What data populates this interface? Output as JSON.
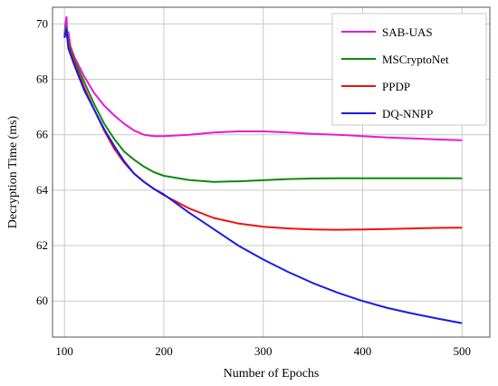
{
  "chart_data": {
    "type": "line",
    "title": "",
    "xlabel": "Number of Epochs",
    "ylabel": "Decryption Time (ms)",
    "xlim": [
      88,
      528
    ],
    "ylim": [
      58.7,
      70.6
    ],
    "xticks": [
      100,
      200,
      300,
      400,
      500
    ],
    "yticks": [
      60,
      62,
      64,
      66,
      68,
      70
    ],
    "grid": true,
    "legend_position": "top-right",
    "series": [
      {
        "name": "SAB-UAS",
        "color": "#e619d9",
        "points": [
          [
            100,
            69.6
          ],
          [
            101,
            70.0
          ],
          [
            102,
            70.25
          ],
          [
            103,
            69.5
          ],
          [
            104,
            69.7
          ],
          [
            106,
            69.2
          ],
          [
            110,
            68.8
          ],
          [
            120,
            68.1
          ],
          [
            130,
            67.5
          ],
          [
            140,
            67.05
          ],
          [
            150,
            66.7
          ],
          [
            160,
            66.4
          ],
          [
            170,
            66.15
          ],
          [
            180,
            66.0
          ],
          [
            190,
            65.95
          ],
          [
            200,
            65.95
          ],
          [
            225,
            66.0
          ],
          [
            250,
            66.08
          ],
          [
            275,
            66.12
          ],
          [
            300,
            66.12
          ],
          [
            325,
            66.08
          ],
          [
            350,
            66.03
          ],
          [
            375,
            66.0
          ],
          [
            400,
            65.95
          ],
          [
            425,
            65.9
          ],
          [
            450,
            65.87
          ],
          [
            475,
            65.83
          ],
          [
            500,
            65.8
          ]
        ]
      },
      {
        "name": "MSCryptoNet",
        "color": "#0d8a0d",
        "points": [
          [
            100,
            69.5
          ],
          [
            102,
            69.9
          ],
          [
            104,
            69.3
          ],
          [
            110,
            68.7
          ],
          [
            120,
            67.9
          ],
          [
            130,
            67.1
          ],
          [
            140,
            66.4
          ],
          [
            150,
            65.85
          ],
          [
            160,
            65.4
          ],
          [
            170,
            65.1
          ],
          [
            180,
            64.85
          ],
          [
            190,
            64.65
          ],
          [
            200,
            64.52
          ],
          [
            225,
            64.37
          ],
          [
            250,
            64.3
          ],
          [
            275,
            64.32
          ],
          [
            300,
            64.36
          ],
          [
            325,
            64.4
          ],
          [
            350,
            64.42
          ],
          [
            375,
            64.43
          ],
          [
            400,
            64.43
          ],
          [
            425,
            64.43
          ],
          [
            450,
            64.43
          ],
          [
            475,
            64.43
          ],
          [
            500,
            64.43
          ]
        ]
      },
      {
        "name": "PPDP",
        "color": "#ee1111",
        "points": [
          [
            100,
            69.5
          ],
          [
            102,
            69.7
          ],
          [
            104,
            69.2
          ],
          [
            110,
            68.6
          ],
          [
            120,
            67.7
          ],
          [
            130,
            66.9
          ],
          [
            140,
            66.15
          ],
          [
            150,
            65.5
          ],
          [
            160,
            65.0
          ],
          [
            170,
            64.6
          ],
          [
            180,
            64.3
          ],
          [
            190,
            64.05
          ],
          [
            200,
            63.82
          ],
          [
            225,
            63.35
          ],
          [
            250,
            63.0
          ],
          [
            275,
            62.8
          ],
          [
            300,
            62.68
          ],
          [
            325,
            62.62
          ],
          [
            350,
            62.58
          ],
          [
            375,
            62.57
          ],
          [
            400,
            62.58
          ],
          [
            425,
            62.6
          ],
          [
            450,
            62.62
          ],
          [
            475,
            62.64
          ],
          [
            500,
            62.65
          ]
        ]
      },
      {
        "name": "DQ-NNPP",
        "color": "#1a1ae6",
        "points": [
          [
            100,
            69.5
          ],
          [
            102,
            69.8
          ],
          [
            104,
            69.1
          ],
          [
            110,
            68.5
          ],
          [
            120,
            67.6
          ],
          [
            130,
            66.9
          ],
          [
            140,
            66.2
          ],
          [
            150,
            65.6
          ],
          [
            160,
            65.05
          ],
          [
            170,
            64.6
          ],
          [
            180,
            64.3
          ],
          [
            190,
            64.05
          ],
          [
            200,
            63.85
          ],
          [
            225,
            63.2
          ],
          [
            250,
            62.6
          ],
          [
            275,
            62.0
          ],
          [
            300,
            61.5
          ],
          [
            325,
            61.05
          ],
          [
            350,
            60.65
          ],
          [
            375,
            60.3
          ],
          [
            400,
            60.0
          ],
          [
            425,
            59.75
          ],
          [
            450,
            59.55
          ],
          [
            475,
            59.37
          ],
          [
            500,
            59.2
          ]
        ]
      }
    ]
  }
}
